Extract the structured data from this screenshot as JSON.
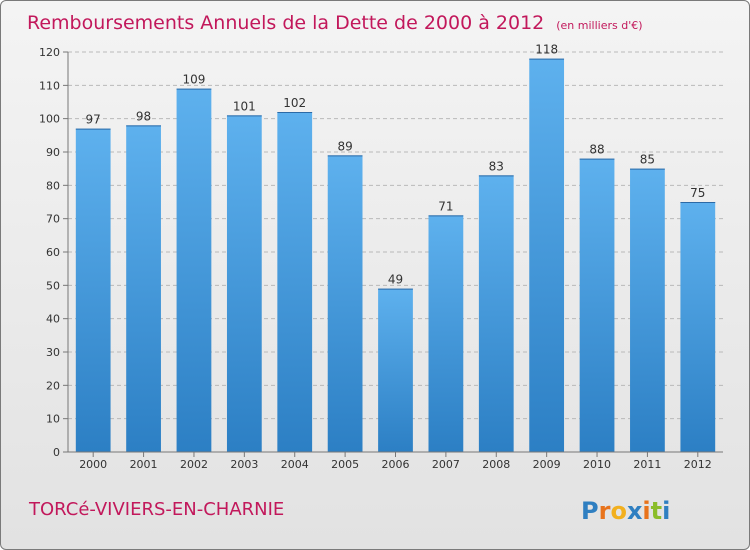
{
  "chart_data": {
    "type": "bar",
    "title": "Remboursements Annuels de la Dette de 2000 à 2012",
    "subtitle": "(en milliers d'€)",
    "categories": [
      "2000",
      "2001",
      "2002",
      "2003",
      "2004",
      "2005",
      "2006",
      "2007",
      "2008",
      "2009",
      "2010",
      "2011",
      "2012"
    ],
    "values": [
      97,
      98,
      109,
      101,
      102,
      89,
      49,
      71,
      83,
      118,
      88,
      85,
      75
    ],
    "xlabel": "",
    "ylabel": "",
    "ylim": [
      0,
      120
    ],
    "yticks": [
      0,
      10,
      20,
      30,
      40,
      50,
      60,
      70,
      80,
      90,
      100,
      110,
      120
    ],
    "grid": true,
    "colors": {
      "bar_light": "#5eb1ee",
      "bar_dark": "#2c7fc4",
      "title": "#c2185b",
      "grid": "#b9b9b9"
    }
  },
  "footer": {
    "commune": "TORCé-VIVIERS-EN-CHARNIE",
    "logo": {
      "letters": [
        "P",
        "r",
        "o",
        "x",
        "i",
        "t",
        "i"
      ],
      "colors": [
        "#2f7fc1",
        "#e8731c",
        "#f2b01e",
        "#2f7fc1",
        "#e8731c",
        "#8bbd2a",
        "#2f7fc1"
      ]
    }
  }
}
